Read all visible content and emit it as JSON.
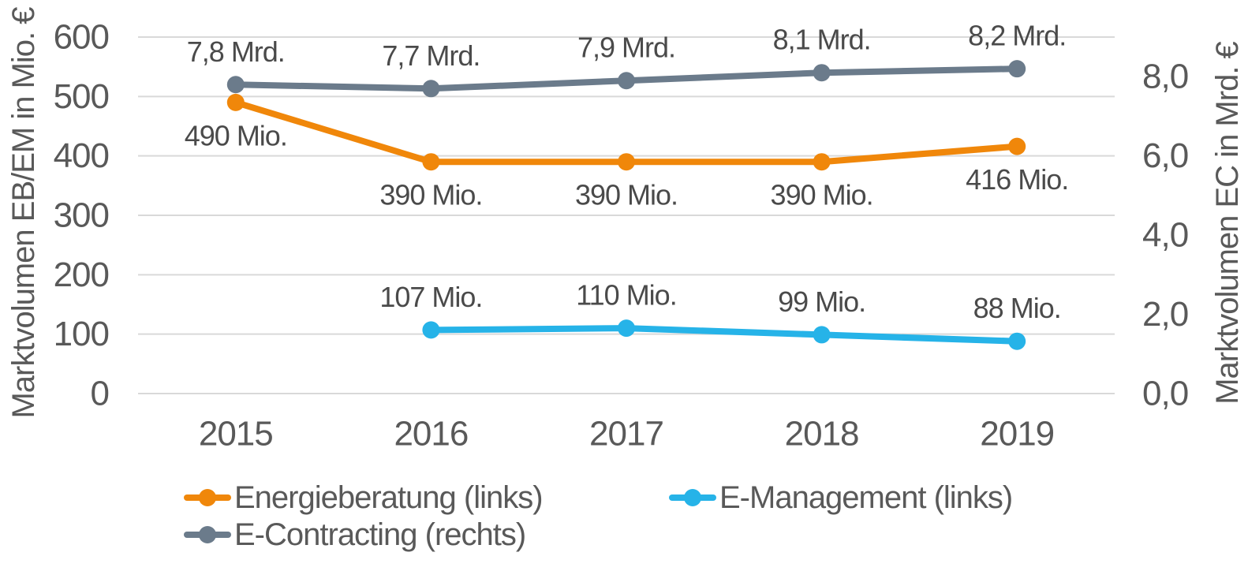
{
  "chart_data": {
    "type": "line",
    "categories": [
      "2015",
      "2016",
      "2017",
      "2018",
      "2019"
    ],
    "series": [
      {
        "name": "Energieberatung (links)",
        "slug": "energieberatung",
        "axis": "left",
        "color": "#F0870A",
        "values": [
          490,
          390,
          390,
          390,
          416
        ],
        "data_labels": [
          "490 Mio.",
          "390 Mio.",
          "390 Mio.",
          "390 Mio.",
          "416 Mio."
        ],
        "label_position": "below"
      },
      {
        "name": "E-Management (links)",
        "slug": "e-management",
        "axis": "left",
        "color": "#26B3E8",
        "values": [
          null,
          107,
          110,
          99,
          88
        ],
        "data_labels": [
          null,
          "107 Mio.",
          "110 Mio.",
          "99 Mio.",
          "88 Mio."
        ],
        "label_position": "above"
      },
      {
        "name": "E-Contracting (rechts)",
        "slug": "e-contracting",
        "axis": "right",
        "color": "#6B7B8B",
        "values": [
          7.8,
          7.7,
          7.9,
          8.1,
          8.2
        ],
        "data_labels": [
          "7,8 Mrd.",
          "7,7 Mrd.",
          "7,9 Mrd.",
          "8,1 Mrd.",
          "8,2 Mrd."
        ],
        "label_position": "above"
      }
    ],
    "left_axis": {
      "title": "Marktvolumen EB/EM in Mio. €",
      "min": 0,
      "max": 600,
      "ticks": [
        0,
        100,
        200,
        300,
        400,
        500,
        600
      ],
      "tick_labels": [
        "0",
        "100",
        "200",
        "300",
        "400",
        "500",
        "600"
      ]
    },
    "right_axis": {
      "title": "Marktvolumen EC in Mrd. €",
      "min": 0,
      "max": 9,
      "ticks": [
        0,
        2,
        4,
        6,
        8
      ],
      "tick_labels": [
        "0,0",
        "2,0",
        "4,0",
        "6,0",
        "8,0"
      ]
    },
    "grid": true,
    "legend_position": "bottom",
    "legend_rows": [
      [
        0,
        1
      ],
      [
        2
      ]
    ],
    "colors": {
      "gridline": "#D9D9D9",
      "tick_text": "#595959",
      "data_label_text": "#4a4a4a",
      "background": "#FFFFFF"
    }
  }
}
